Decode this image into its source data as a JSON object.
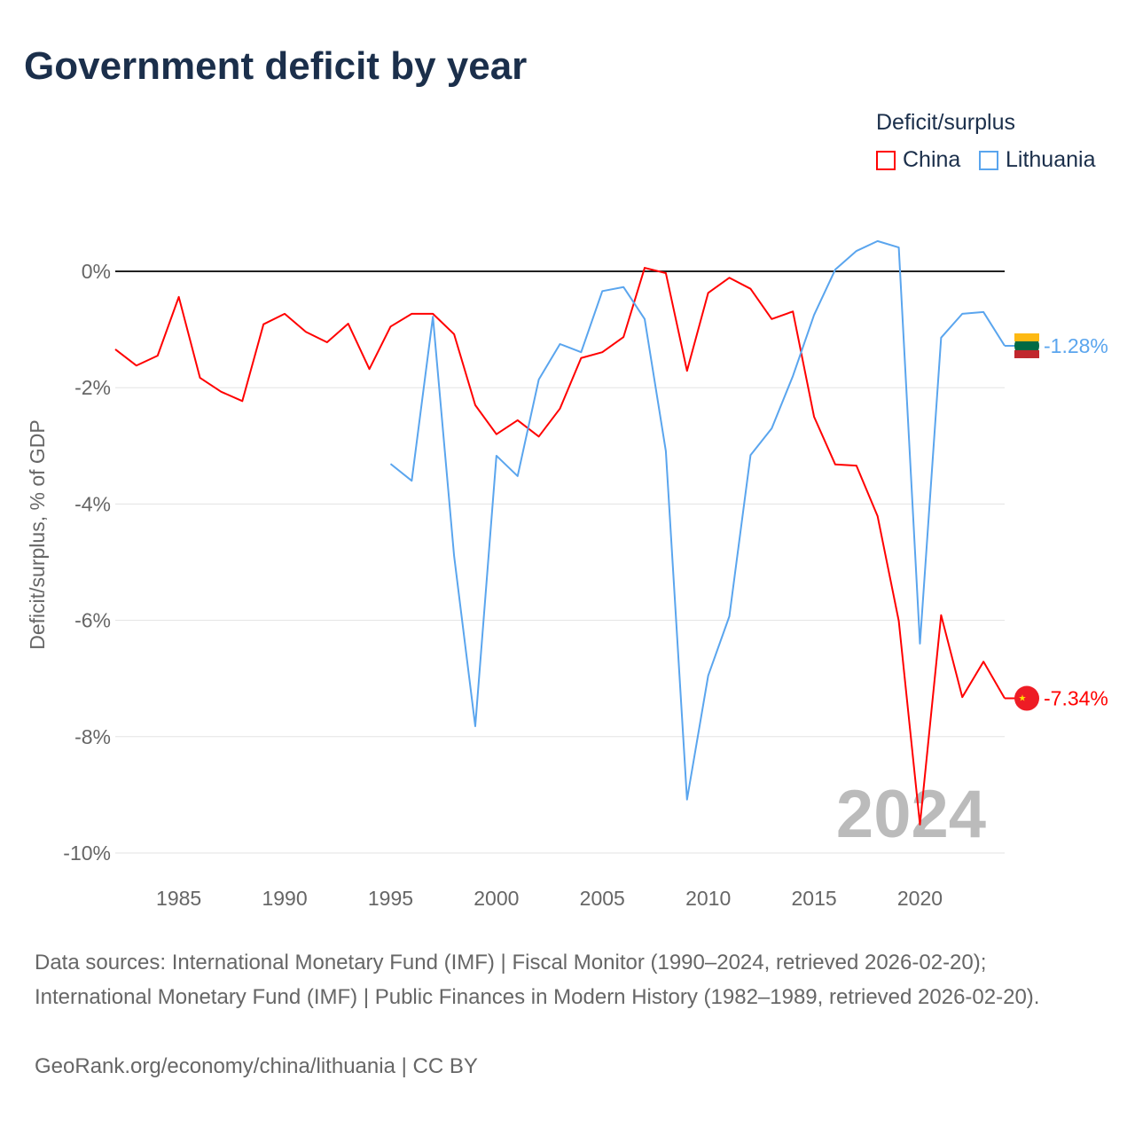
{
  "title": "Government deficit by year",
  "legend": {
    "title": "Deficit/surplus",
    "items": [
      {
        "name": "China",
        "color": "#ff0000"
      },
      {
        "name": "Lithuania",
        "color": "#5aa5ee"
      }
    ]
  },
  "chart_data": {
    "type": "line",
    "title": "Government deficit by year",
    "xlabel": "",
    "ylabel": "Deficit/surplus, % of GDP",
    "xlim": [
      1982,
      2024
    ],
    "ylim": [
      -10,
      0.8
    ],
    "yticks": [
      0,
      -2,
      -4,
      -6,
      -8,
      -10
    ],
    "ytick_labels": [
      "0%",
      "-2%",
      "-4%",
      "-6%",
      "-8%",
      "-10%"
    ],
    "xticks": [
      1985,
      1990,
      1995,
      2000,
      2005,
      2010,
      2015,
      2020
    ],
    "xtick_labels": [
      "1985",
      "1990",
      "1995",
      "2000",
      "2005",
      "2010",
      "2015",
      "2020"
    ],
    "watermark_year": "2024",
    "series": [
      {
        "name": "China",
        "color": "#ff0000",
        "start": 1982,
        "end_label": "-7.34%",
        "values": [
          -1.34,
          -1.62,
          -1.45,
          -0.44,
          -1.83,
          -2.07,
          -2.23,
          -0.91,
          -0.73,
          -1.04,
          -1.22,
          -0.9,
          -1.68,
          -0.95,
          -0.73,
          -0.73,
          -1.08,
          -2.3,
          -2.8,
          -2.56,
          -2.84,
          -2.36,
          -1.49,
          -1.39,
          -1.13,
          0.06,
          -0.03,
          -1.71,
          -0.37,
          -0.11,
          -0.3,
          -0.82,
          -0.69,
          -2.5,
          -3.32,
          -3.34,
          -4.21,
          -6.01,
          -9.51,
          -5.91,
          -7.32,
          -6.71,
          -7.34
        ]
      },
      {
        "name": "Lithuania",
        "color": "#5aa5ee",
        "start": 1995,
        "end_label": "-1.28%",
        "values": [
          -3.31,
          -3.6,
          -0.78,
          -4.89,
          -7.82,
          -3.17,
          -3.52,
          -1.86,
          -1.25,
          -1.39,
          -0.34,
          -0.27,
          -0.82,
          -3.09,
          -9.08,
          -6.95,
          -5.93,
          -3.16,
          -2.7,
          -1.8,
          -0.75,
          0.03,
          0.35,
          0.52,
          0.41,
          -6.4,
          -1.14,
          -0.73,
          -0.7,
          -1.28
        ]
      }
    ]
  },
  "sources": {
    "line1": "Data sources: International Monetary Fund (IMF) | Fiscal Monitor (1990–2024, retrieved 2026-02-20); International Monetary Fund (IMF) | Public Finances in Modern History (1982–1989, retrieved 2026-02-20).",
    "line2": "GeoRank.org/economy/china/lithuania | CC BY"
  }
}
